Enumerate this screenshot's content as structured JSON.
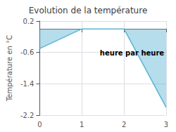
{
  "chart_data": {
    "type": "line",
    "title": "Evolution de la température",
    "y_label": "Température en °C",
    "annotations": [
      "heure par heure"
    ],
    "x": [
      0,
      1,
      2,
      3
    ],
    "values": [
      -0.5,
      0.0,
      0.0,
      -2.0
    ],
    "color": "#5ab4d4",
    "xlim": [
      0,
      3
    ],
    "xticks": [
      0,
      1,
      2,
      3
    ],
    "ylim": [
      -2.2,
      0.2
    ],
    "yticks": [
      0.2,
      -0.6,
      -1.4,
      -2.2
    ],
    "grid": true
  }
}
